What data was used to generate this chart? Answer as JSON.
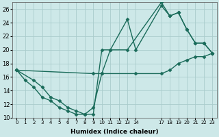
{
  "xlabel": "Humidex (Indice chaleur)",
  "bg_color": "#cde8e8",
  "grid_color": "#aacccc",
  "line_color": "#1a6b5a",
  "xlim": [
    -0.5,
    23.5
  ],
  "ylim": [
    10,
    27
  ],
  "yticks": [
    10,
    12,
    14,
    16,
    18,
    20,
    22,
    24,
    26
  ],
  "xticks": [
    0,
    1,
    2,
    3,
    4,
    5,
    6,
    7,
    8,
    9,
    10,
    11,
    12,
    13,
    14,
    17,
    18,
    19,
    20,
    21,
    22,
    23
  ],
  "xtick_labels": [
    "0",
    "1",
    "2",
    "3",
    "4",
    "5",
    "6",
    "7",
    "8",
    "9",
    "10",
    "11",
    "12",
    "13",
    "14",
    "17",
    "18",
    "19",
    "20",
    "21",
    "22",
    "23"
  ],
  "line1_x": [
    0,
    1,
    2,
    3,
    4,
    5,
    6,
    7,
    8,
    9,
    10,
    11,
    13,
    14,
    17,
    18,
    19,
    20,
    21,
    22,
    23
  ],
  "line1_y": [
    17,
    15.5,
    14.5,
    13.0,
    12.5,
    11.5,
    11.0,
    10.5,
    10.5,
    11.5,
    16.5,
    20.0,
    24.5,
    20.0,
    26.5,
    25.0,
    25.5,
    23.0,
    21.0,
    21.0,
    19.5
  ],
  "line2_x": [
    0,
    2,
    3,
    4,
    5,
    6,
    7,
    8,
    9,
    10,
    11,
    13,
    17,
    18,
    19,
    20,
    21,
    22,
    23
  ],
  "line2_y": [
    17,
    15.5,
    14.5,
    13.0,
    12.5,
    11.5,
    11.0,
    10.5,
    10.5,
    20.0,
    20.0,
    20.0,
    27.0,
    25.0,
    25.5,
    23.0,
    21.0,
    21.0,
    19.5
  ],
  "line3_x": [
    0,
    9,
    10,
    14,
    17,
    18,
    19,
    20,
    21,
    22,
    23
  ],
  "line3_y": [
    17,
    16.5,
    16.5,
    16.5,
    16.5,
    17.0,
    18.0,
    18.5,
    19.0,
    19.0,
    19.5
  ],
  "marker_size": 2.5,
  "linewidth": 1.0
}
